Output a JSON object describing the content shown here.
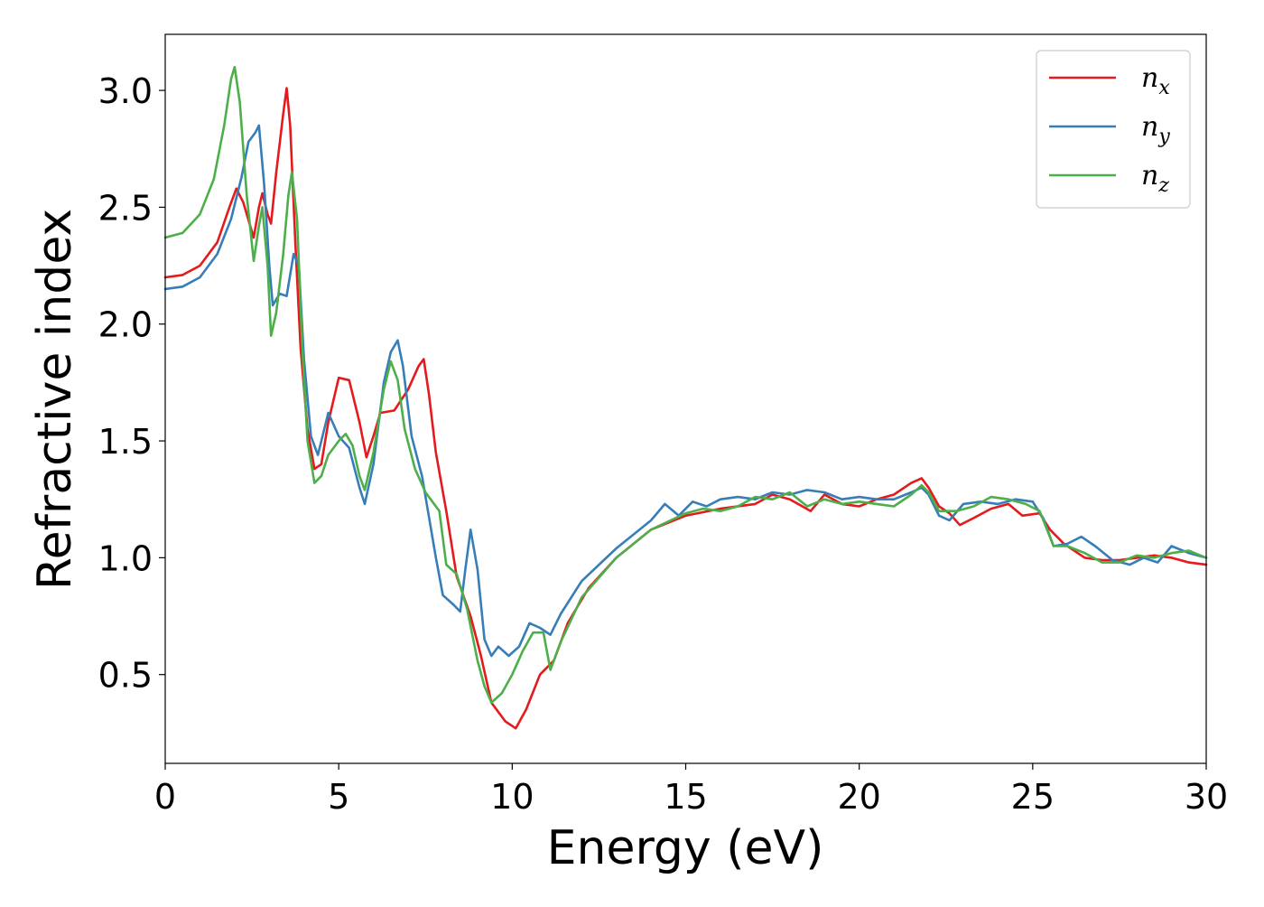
{
  "chart_data": {
    "type": "line",
    "title": "",
    "xlabel": "Energy (eV)",
    "ylabel": "Refractive index",
    "xlim": [
      0,
      30
    ],
    "ylim": [
      0.12,
      3.24
    ],
    "xticks": [
      0,
      5,
      10,
      15,
      20,
      25,
      30
    ],
    "xtick_labels": [
      "0",
      "5",
      "10",
      "15",
      "20",
      "25",
      "30"
    ],
    "yticks": [
      0.5,
      1.0,
      1.5,
      2.0,
      2.5,
      3.0
    ],
    "ytick_labels": [
      "0.5",
      "1.0",
      "1.5",
      "2.0",
      "2.5",
      "3.0"
    ],
    "grid": false,
    "legend_position": "top-right",
    "series": [
      {
        "name": "n_x",
        "label_base": "n",
        "label_sub": "x",
        "color": "#e41a1c",
        "points": [
          [
            0,
            2.2
          ],
          [
            0.5,
            2.21
          ],
          [
            1.0,
            2.25
          ],
          [
            1.5,
            2.35
          ],
          [
            1.85,
            2.5
          ],
          [
            2.05,
            2.58
          ],
          [
            2.25,
            2.52
          ],
          [
            2.55,
            2.37
          ],
          [
            2.7,
            2.5
          ],
          [
            2.8,
            2.56
          ],
          [
            2.95,
            2.47
          ],
          [
            3.05,
            2.43
          ],
          [
            3.2,
            2.65
          ],
          [
            3.4,
            2.9
          ],
          [
            3.5,
            3.01
          ],
          [
            3.6,
            2.85
          ],
          [
            3.75,
            2.35
          ],
          [
            3.9,
            1.9
          ],
          [
            4.1,
            1.55
          ],
          [
            4.3,
            1.38
          ],
          [
            4.5,
            1.4
          ],
          [
            4.7,
            1.58
          ],
          [
            5.0,
            1.77
          ],
          [
            5.3,
            1.76
          ],
          [
            5.6,
            1.58
          ],
          [
            5.8,
            1.43
          ],
          [
            6.0,
            1.52
          ],
          [
            6.2,
            1.62
          ],
          [
            6.6,
            1.63
          ],
          [
            7.0,
            1.72
          ],
          [
            7.3,
            1.82
          ],
          [
            7.45,
            1.85
          ],
          [
            7.6,
            1.7
          ],
          [
            7.8,
            1.45
          ],
          [
            8.1,
            1.2
          ],
          [
            8.4,
            0.92
          ],
          [
            8.8,
            0.75
          ],
          [
            9.1,
            0.58
          ],
          [
            9.4,
            0.38
          ],
          [
            9.8,
            0.3
          ],
          [
            10.1,
            0.27
          ],
          [
            10.4,
            0.35
          ],
          [
            10.8,
            0.5
          ],
          [
            11.2,
            0.56
          ],
          [
            11.6,
            0.72
          ],
          [
            12.2,
            0.87
          ],
          [
            13.0,
            1.0
          ],
          [
            14.0,
            1.12
          ],
          [
            15.0,
            1.18
          ],
          [
            16.0,
            1.21
          ],
          [
            17.0,
            1.23
          ],
          [
            17.5,
            1.27
          ],
          [
            18.0,
            1.25
          ],
          [
            18.6,
            1.2
          ],
          [
            19.0,
            1.27
          ],
          [
            19.5,
            1.23
          ],
          [
            20.0,
            1.22
          ],
          [
            20.5,
            1.25
          ],
          [
            21.0,
            1.27
          ],
          [
            21.5,
            1.32
          ],
          [
            21.8,
            1.34
          ],
          [
            22.0,
            1.3
          ],
          [
            22.3,
            1.22
          ],
          [
            22.6,
            1.19
          ],
          [
            22.9,
            1.14
          ],
          [
            23.3,
            1.17
          ],
          [
            23.8,
            1.21
          ],
          [
            24.3,
            1.23
          ],
          [
            24.7,
            1.18
          ],
          [
            25.2,
            1.19
          ],
          [
            25.5,
            1.12
          ],
          [
            25.9,
            1.06
          ],
          [
            26.5,
            1.0
          ],
          [
            27.0,
            0.99
          ],
          [
            27.5,
            0.99
          ],
          [
            28.0,
            1.0
          ],
          [
            28.5,
            1.01
          ],
          [
            29.0,
            1.0
          ],
          [
            29.5,
            0.98
          ],
          [
            30.0,
            0.97
          ]
        ]
      },
      {
        "name": "n_y",
        "label_base": "n",
        "label_sub": "y",
        "color": "#377eb8",
        "points": [
          [
            0,
            2.15
          ],
          [
            0.5,
            2.16
          ],
          [
            1.0,
            2.2
          ],
          [
            1.5,
            2.3
          ],
          [
            1.9,
            2.45
          ],
          [
            2.2,
            2.63
          ],
          [
            2.4,
            2.78
          ],
          [
            2.6,
            2.82
          ],
          [
            2.7,
            2.85
          ],
          [
            2.85,
            2.6
          ],
          [
            3.0,
            2.25
          ],
          [
            3.1,
            2.08
          ],
          [
            3.3,
            2.13
          ],
          [
            3.5,
            2.12
          ],
          [
            3.7,
            2.3
          ],
          [
            3.85,
            2.25
          ],
          [
            4.0,
            1.85
          ],
          [
            4.2,
            1.52
          ],
          [
            4.4,
            1.44
          ],
          [
            4.7,
            1.62
          ],
          [
            5.0,
            1.52
          ],
          [
            5.3,
            1.47
          ],
          [
            5.6,
            1.3
          ],
          [
            5.75,
            1.23
          ],
          [
            6.0,
            1.4
          ],
          [
            6.3,
            1.75
          ],
          [
            6.5,
            1.88
          ],
          [
            6.7,
            1.93
          ],
          [
            6.85,
            1.82
          ],
          [
            7.1,
            1.52
          ],
          [
            7.4,
            1.35
          ],
          [
            7.8,
            1.0
          ],
          [
            8.0,
            0.84
          ],
          [
            8.3,
            0.8
          ],
          [
            8.5,
            0.77
          ],
          [
            8.65,
            0.95
          ],
          [
            8.8,
            1.12
          ],
          [
            9.0,
            0.95
          ],
          [
            9.2,
            0.65
          ],
          [
            9.4,
            0.58
          ],
          [
            9.6,
            0.62
          ],
          [
            9.9,
            0.58
          ],
          [
            10.2,
            0.62
          ],
          [
            10.5,
            0.72
          ],
          [
            10.8,
            0.7
          ],
          [
            11.1,
            0.67
          ],
          [
            11.4,
            0.76
          ],
          [
            12.0,
            0.9
          ],
          [
            13.0,
            1.04
          ],
          [
            14.0,
            1.16
          ],
          [
            14.4,
            1.23
          ],
          [
            14.8,
            1.18
          ],
          [
            15.2,
            1.24
          ],
          [
            15.6,
            1.22
          ],
          [
            16.0,
            1.25
          ],
          [
            16.5,
            1.26
          ],
          [
            17.0,
            1.25
          ],
          [
            17.5,
            1.28
          ],
          [
            18.0,
            1.27
          ],
          [
            18.5,
            1.29
          ],
          [
            19.0,
            1.28
          ],
          [
            19.5,
            1.25
          ],
          [
            20.0,
            1.26
          ],
          [
            20.5,
            1.25
          ],
          [
            21.0,
            1.25
          ],
          [
            21.5,
            1.28
          ],
          [
            21.8,
            1.3
          ],
          [
            22.0,
            1.27
          ],
          [
            22.3,
            1.18
          ],
          [
            22.6,
            1.16
          ],
          [
            23.0,
            1.23
          ],
          [
            23.5,
            1.24
          ],
          [
            24.0,
            1.23
          ],
          [
            24.5,
            1.25
          ],
          [
            25.0,
            1.24
          ],
          [
            25.3,
            1.17
          ],
          [
            25.6,
            1.05
          ],
          [
            26.0,
            1.06
          ],
          [
            26.4,
            1.09
          ],
          [
            26.8,
            1.05
          ],
          [
            27.3,
            0.99
          ],
          [
            27.8,
            0.97
          ],
          [
            28.2,
            1.0
          ],
          [
            28.6,
            0.98
          ],
          [
            29.0,
            1.05
          ],
          [
            29.5,
            1.02
          ],
          [
            30.0,
            1.0
          ]
        ]
      },
      {
        "name": "n_z",
        "label_base": "n",
        "label_sub": "z",
        "color": "#4daf4a",
        "points": [
          [
            0,
            2.37
          ],
          [
            0.5,
            2.39
          ],
          [
            1.0,
            2.47
          ],
          [
            1.4,
            2.62
          ],
          [
            1.7,
            2.85
          ],
          [
            1.9,
            3.05
          ],
          [
            2.0,
            3.1
          ],
          [
            2.15,
            2.95
          ],
          [
            2.35,
            2.55
          ],
          [
            2.55,
            2.27
          ],
          [
            2.7,
            2.42
          ],
          [
            2.8,
            2.5
          ],
          [
            2.95,
            2.25
          ],
          [
            3.05,
            1.95
          ],
          [
            3.2,
            2.05
          ],
          [
            3.4,
            2.3
          ],
          [
            3.55,
            2.55
          ],
          [
            3.65,
            2.65
          ],
          [
            3.8,
            2.45
          ],
          [
            3.95,
            1.9
          ],
          [
            4.1,
            1.5
          ],
          [
            4.3,
            1.32
          ],
          [
            4.5,
            1.35
          ],
          [
            4.7,
            1.44
          ],
          [
            5.0,
            1.5
          ],
          [
            5.2,
            1.53
          ],
          [
            5.4,
            1.48
          ],
          [
            5.6,
            1.35
          ],
          [
            5.75,
            1.29
          ],
          [
            6.0,
            1.45
          ],
          [
            6.3,
            1.72
          ],
          [
            6.5,
            1.84
          ],
          [
            6.7,
            1.76
          ],
          [
            6.9,
            1.55
          ],
          [
            7.2,
            1.38
          ],
          [
            7.5,
            1.28
          ],
          [
            7.9,
            1.2
          ],
          [
            8.1,
            0.97
          ],
          [
            8.4,
            0.93
          ],
          [
            8.7,
            0.78
          ],
          [
            9.0,
            0.56
          ],
          [
            9.2,
            0.45
          ],
          [
            9.4,
            0.38
          ],
          [
            9.7,
            0.42
          ],
          [
            10.0,
            0.5
          ],
          [
            10.3,
            0.6
          ],
          [
            10.6,
            0.68
          ],
          [
            10.9,
            0.68
          ],
          [
            11.1,
            0.52
          ],
          [
            11.4,
            0.64
          ],
          [
            12.0,
            0.83
          ],
          [
            13.0,
            1.0
          ],
          [
            14.0,
            1.12
          ],
          [
            15.0,
            1.19
          ],
          [
            15.5,
            1.21
          ],
          [
            16.0,
            1.2
          ],
          [
            16.5,
            1.22
          ],
          [
            17.0,
            1.26
          ],
          [
            17.5,
            1.25
          ],
          [
            18.0,
            1.28
          ],
          [
            18.5,
            1.22
          ],
          [
            19.0,
            1.25
          ],
          [
            19.5,
            1.23
          ],
          [
            20.0,
            1.24
          ],
          [
            20.5,
            1.23
          ],
          [
            21.0,
            1.22
          ],
          [
            21.5,
            1.27
          ],
          [
            21.8,
            1.31
          ],
          [
            22.0,
            1.28
          ],
          [
            22.3,
            1.2
          ],
          [
            22.8,
            1.2
          ],
          [
            23.3,
            1.22
          ],
          [
            23.8,
            1.26
          ],
          [
            24.3,
            1.25
          ],
          [
            24.8,
            1.23
          ],
          [
            25.2,
            1.2
          ],
          [
            25.6,
            1.05
          ],
          [
            26.0,
            1.05
          ],
          [
            26.5,
            1.02
          ],
          [
            27.0,
            0.98
          ],
          [
            27.5,
            0.98
          ],
          [
            28.0,
            1.01
          ],
          [
            28.5,
            1.0
          ],
          [
            29.0,
            1.02
          ],
          [
            29.5,
            1.03
          ],
          [
            30.0,
            1.0
          ]
        ]
      }
    ]
  }
}
